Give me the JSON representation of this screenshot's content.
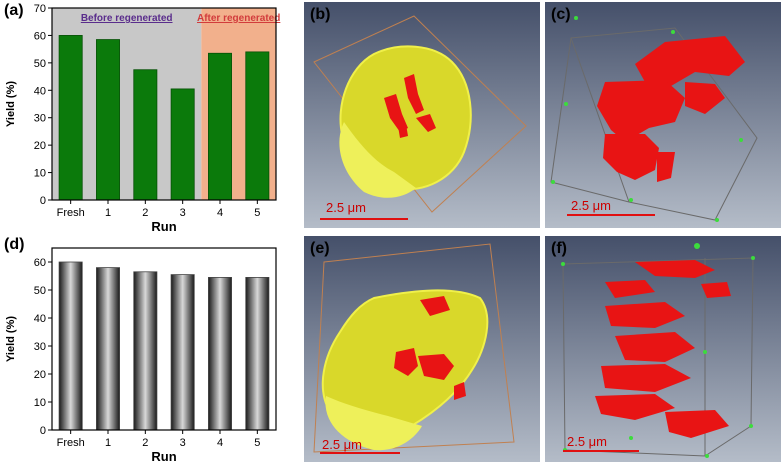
{
  "panel_labels": {
    "a": "(a)",
    "b": "(b)",
    "c": "(c)",
    "d": "(d)",
    "e": "(e)",
    "f": "(f)"
  },
  "scale_bars": {
    "b": "2.5 μm",
    "c": "2.5 μm",
    "e": "2.5 μm",
    "f": "2.5 μm"
  },
  "colors": {
    "bar_green": "#0b7a0b",
    "region_before": "#c8c8c8",
    "region_after": "#f2b08c",
    "before_text": "#5a2d8c",
    "after_text": "#d23c3c",
    "particle_yellow": "#e6e832",
    "particle_red": "#e81414"
  },
  "chart_data": [
    {
      "type": "bar",
      "categories": [
        "Fresh",
        "1",
        "2",
        "3",
        "4",
        "5"
      ],
      "values": [
        60,
        58.5,
        47.5,
        40.5,
        53.5,
        54
      ],
      "xlabel": "Run",
      "ylabel": "Yield (%)",
      "ylim": [
        0,
        70
      ],
      "yticks": [
        0,
        10,
        20,
        30,
        40,
        50,
        60,
        70
      ],
      "regions": [
        {
          "label": "Before regenerated",
          "from": "Fresh",
          "to": "3"
        },
        {
          "label": "After regenerated",
          "from": "4",
          "to": "5"
        }
      ]
    },
    {
      "type": "bar",
      "categories": [
        "Fresh",
        "1",
        "2",
        "3",
        "4",
        "5"
      ],
      "values": [
        60,
        58,
        56.5,
        55.5,
        54.5,
        54.5
      ],
      "xlabel": "Run",
      "ylabel": "Yield (%)",
      "ylim": [
        0,
        65
      ],
      "yticks": [
        0,
        10,
        20,
        30,
        40,
        50,
        60
      ]
    }
  ]
}
